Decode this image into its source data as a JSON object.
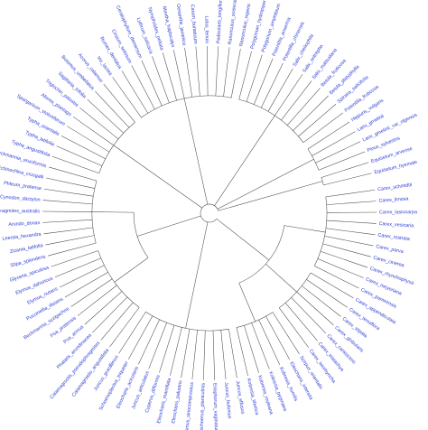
{
  "figure": {
    "label_color": "#2b3bd6",
    "branch_color": "#4a4a4a",
    "background": "#ffffff"
  },
  "tree": {
    "type": "circular-phylogeny",
    "root": [
      {
        "name": "g-sedges",
        "children": [
          {
            "name": "g-carex-a",
            "children": [
              "Carex_schmidtii",
              "Carex_limosa",
              "Carex_lasiocarpa",
              "Carex_vesicaria",
              "Carex_rostrata",
              "Carex_parva",
              "Carex_cinerea",
              "Carex_rhynchophysa",
              "Carex_meyeriana",
              "Carex_pamirensis"
            ]
          },
          {
            "name": "g-carex-b",
            "children": [
              "Carex_appendiculata",
              "Carex_tenuiflora",
              "Carex_stipata",
              "Carex_globularis",
              "Carex_canescens",
              "Carex_tristachya",
              "Carex_leiorhyncha"
            ]
          },
          {
            "name": "g-cyper",
            "children": [
              "Scirpus_orientalis",
              "Eleocharis_intersita",
              "Kobresia_humilis",
              "Kobresia_pygmaea",
              "Kobresia_royleana",
              "Kobresia_tibetica"
            ]
          }
        ]
      },
      {
        "name": "g-juncus",
        "children": [
          "Juncus_effusus",
          "Juncus_bufonius",
          "Eriophorum_vaginatum",
          "Bolboschoenus_planiculmis",
          "Blysmus_sinocompressus",
          "Eleocharis_palustris",
          "Eleocharis_mamillata",
          "Cyperus_difformis",
          "Juncus_articulatus",
          "Eleocharis_acicularis",
          "Schoenoplectus_triqueter",
          "Juncus_gracillimus"
        ]
      },
      {
        "name": "g-poa",
        "children": [
          {
            "name": "g-poa-a",
            "children": [
              "Calamagrostis_angustifolia",
              "Calamagrostis_pseudophragmites",
              "Phalaris_arundinacea",
              "Poa_annua",
              "Poa_pratensis",
              "Beckmannia_syzigachne",
              "Puccinellia_distans",
              "Elymus_nutans",
              "Elymus_dahuricus",
              "Glyceria_spiculosa"
            ]
          },
          {
            "name": "g-poa-b",
            "children": [
              "Stipa_splendens",
              "Zizania_latifolia",
              "Leersia_hexandra",
              "Arundo_donax",
              "Phragmites_australis",
              "Cynodon_dactylon",
              "Phleum_pratense",
              "Echinochloa_crusgalli",
              "Beckmannia_eruciformis"
            ]
          }
        ]
      },
      {
        "name": "g-typha",
        "children": [
          "Typha_angustifolia",
          "Typha_latifolia",
          "Typha_orientalis",
          "Sparganium_stoloniferum",
          "Alisma_plantago",
          "Triglochin_palustre",
          "Sagittaria_trifolia",
          "Butomus_umbellatus",
          "Acorus_calamus"
        ]
      },
      {
        "name": "g-dicot",
        "children": [
          "Iris_lactea",
          "Rumex_dentatus",
          "Cirsium_setosum",
          "Ceratophyllum_demersum",
          "Lythrum_salicaria",
          "Nymphoides_peltata",
          "Mentha_haplocalyx",
          "Oenanthe_javanica",
          "Carum_buriaticum",
          "Lotus_tenuis",
          "Pedicularis_longiflora",
          "Ranunculus_sceleratus",
          "Ranunculus_repens"
        ]
      },
      {
        "name": "g-rosid",
        "children": [
          "Polygonum_hydropiper",
          "Polygonum_amphibium",
          "Potentilla_anserina",
          "Potentilla_chinensis",
          "Salix_cheilophila",
          "Salix_oritrepha",
          "Salix_matsudana",
          "Betula_fruticosa",
          "Betula_platyphylla",
          "Spiraea_salicifolia",
          "Potentilla_fruticosa"
        ]
      },
      {
        "name": "g-gymno",
        "children": [
          "Hippuris_vulgaris",
          "Larix_gmelinii",
          "Larix_gmelinii_var_olgensis",
          "Pinus_sylvestris"
        ]
      },
      {
        "name": "g-equisetum",
        "children": [
          "Equisetum_arvense",
          "Equisetum_hyemale"
        ]
      }
    ]
  }
}
